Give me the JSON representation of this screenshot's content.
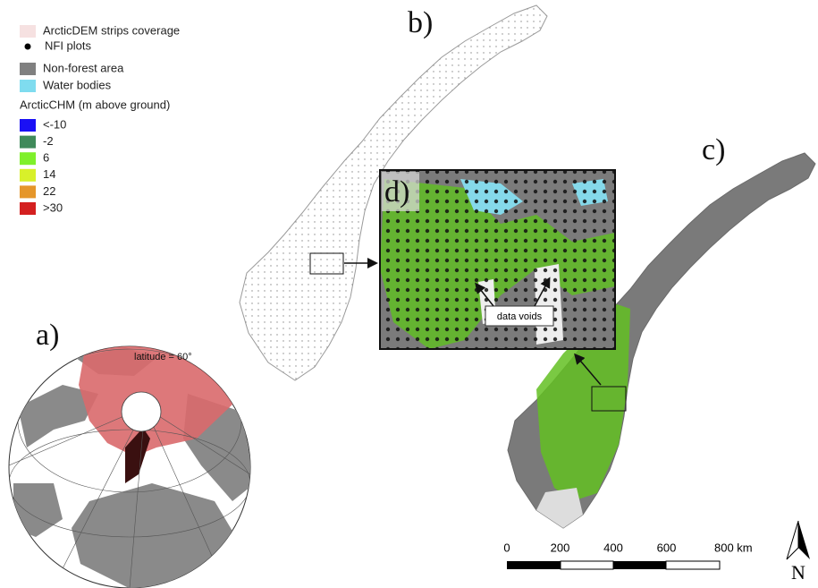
{
  "legend": {
    "items": [
      {
        "label": "ArcticDEM strips coverage",
        "color": "#f6e1e1",
        "shape": "box"
      },
      {
        "label": "NFI plots",
        "color": "#000000",
        "shape": "dot"
      },
      {
        "label": "Non-forest area",
        "color": "#808080",
        "shape": "box"
      },
      {
        "label": "Water bodies",
        "color": "#7fdcef",
        "shape": "box"
      }
    ],
    "chm_title": "ArcticCHM (m above ground)",
    "chm_classes": [
      {
        "label": "<-10",
        "color": "#1a10f5"
      },
      {
        "label": "-2",
        "color": "#3f8a5a"
      },
      {
        "label": "6",
        "color": "#7ff02a"
      },
      {
        "label": "14",
        "color": "#d8f02a"
      },
      {
        "label": "22",
        "color": "#e5962a"
      },
      {
        "label": ">30",
        "color": "#d42020"
      }
    ]
  },
  "panels": {
    "a": "a)",
    "b": "b)",
    "c": "c)",
    "d": "d)"
  },
  "globe_label": "latitude = 60°",
  "inset_annotation": "data voids",
  "scale_bar": {
    "labels": [
      "0",
      "200",
      "400",
      "600",
      "800 km"
    ]
  },
  "north_arrow": "N"
}
